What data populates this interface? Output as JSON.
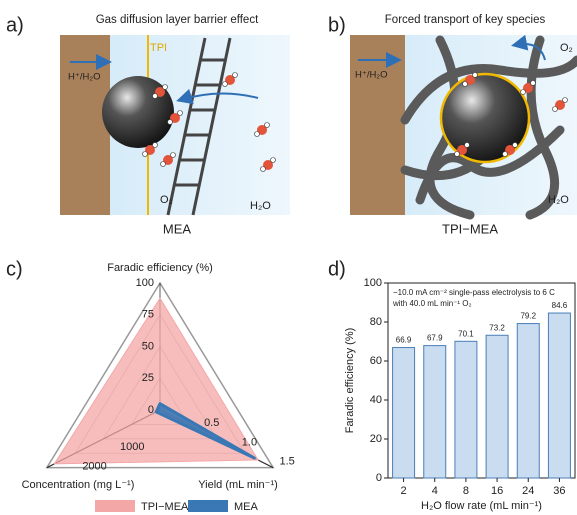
{
  "panels": [
    {
      "label": "a)",
      "title": "Gas diffusion layer barrier effect",
      "caption": "MEA",
      "tags": {
        "tpi": "TPI",
        "inlet": "H⁺/H₂O",
        "gas": "O₂",
        "water": "H₂O"
      }
    },
    {
      "label": "b)",
      "title": "Forced transport of key species",
      "caption": "TPI−MEA",
      "tags": {
        "inlet": "H⁺/H₂O",
        "gas": "O₂",
        "water": "H₂O"
      }
    }
  ],
  "chart_data": [
    {
      "type": "radar",
      "label": "c)",
      "axes": [
        {
          "name": "Faradic efficiency (%)",
          "lim": [
            0,
            100
          ],
          "ticks": [
            0,
            25,
            50,
            75,
            100
          ]
        },
        {
          "name": "Yield (mL min⁻¹)",
          "lim": [
            0,
            1.5
          ],
          "ticks": [
            0.5,
            {
              "value": 1,
              "label": "1.0"
            },
            1.5
          ]
        },
        {
          "name": "Concentration (mg L⁻¹)",
          "lim": [
            0,
            3000
          ],
          "ticks": [
            1000,
            2000
          ]
        }
      ],
      "series": [
        {
          "name": "TPI−MEA",
          "color": "#f4a7a7",
          "values": [
            88,
            1.3,
            2800
          ]
        },
        {
          "name": "MEA",
          "color": "#3a78b5",
          "values": [
            5,
            1.25,
            100
          ]
        }
      ]
    },
    {
      "type": "bar",
      "label": "d)",
      "annotation": [
        "−10.0 mA cm⁻² single-pass electrolysis to 6 C",
        "with 40.0 mL min⁻¹ O₂"
      ],
      "xlabel": "H₂O flow rate (mL min⁻¹)",
      "ylabel": "Faradic efficiency (%)",
      "categories": [
        "2",
        "4",
        "8",
        "16",
        "24",
        "36"
      ],
      "values": [
        66.9,
        67.9,
        70.1,
        73.2,
        79.2,
        84.6
      ],
      "color": "#c9dcf0",
      "edgecolor": "#4a7fb8",
      "ylim": [
        0,
        100
      ],
      "yticks": [
        0,
        20,
        40,
        60,
        80,
        100
      ]
    }
  ]
}
